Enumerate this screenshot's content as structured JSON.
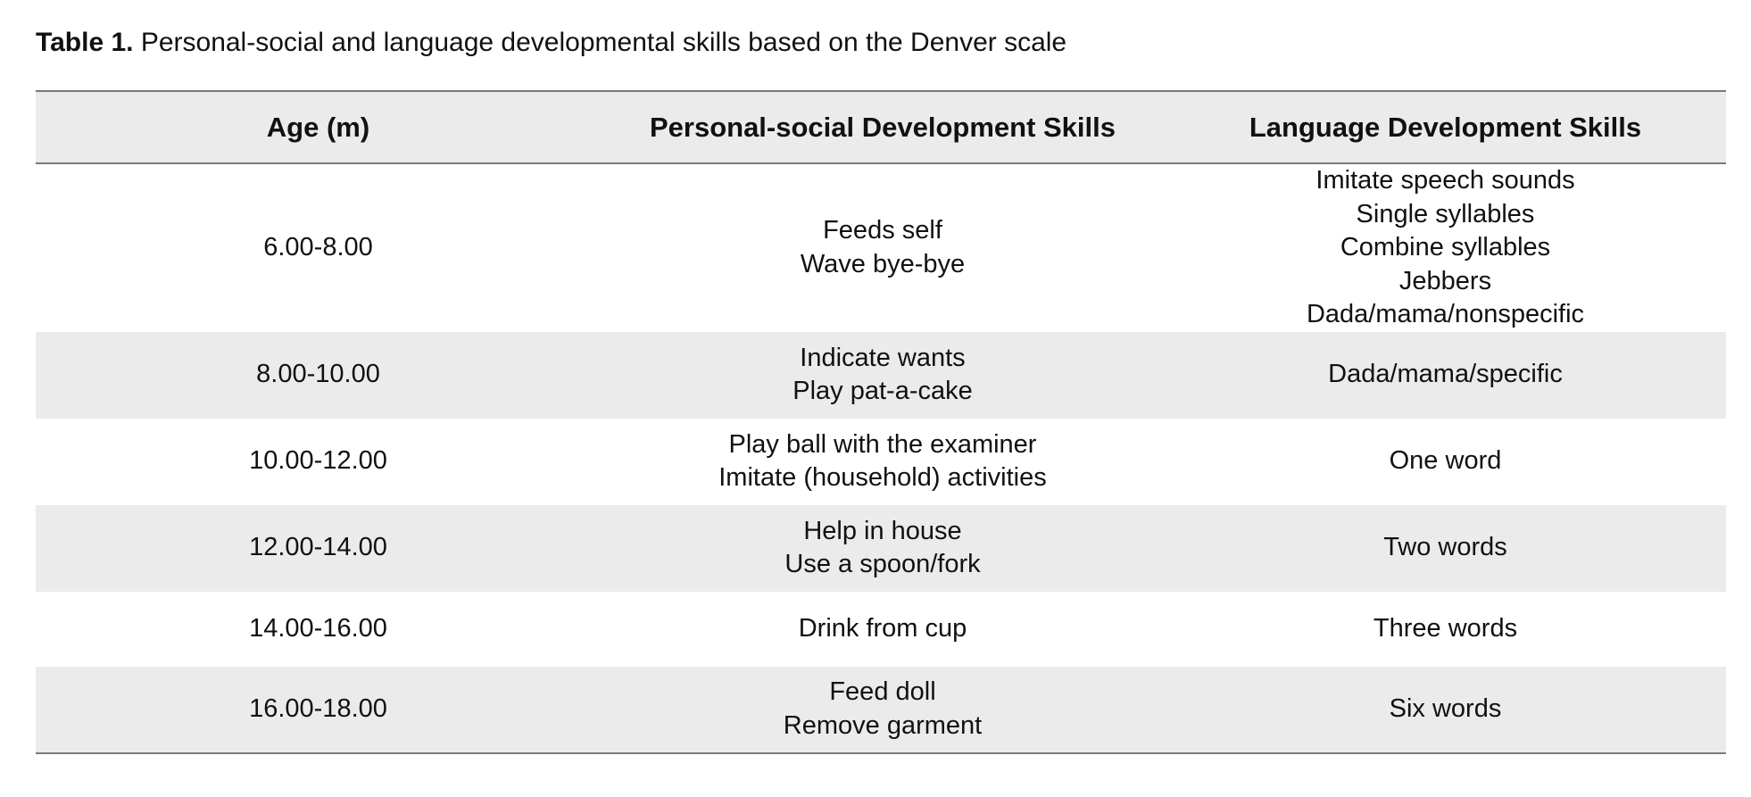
{
  "caption": {
    "label": "Table 1.",
    "text": " Personal-social and language developmental skills based on the Denver scale"
  },
  "table": {
    "headers": [
      "Age (m)",
      "Personal-social Development Skills",
      "Language Development Skills"
    ],
    "rows": [
      {
        "age": "6.00-8.00",
        "personal_social": [
          "Feeds self",
          "Wave bye-bye"
        ],
        "language": [
          "Imitate speech sounds",
          "Single syllables",
          "Combine syllables",
          "Jebbers",
          "Dada/mama/nonspecific"
        ]
      },
      {
        "age": "8.00-10.00",
        "personal_social": [
          "Indicate wants",
          "Play pat-a-cake"
        ],
        "language": [
          "Dada/mama/specific"
        ]
      },
      {
        "age": "10.00-12.00",
        "personal_social": [
          "Play ball with the examiner",
          "Imitate (household) activities"
        ],
        "language": [
          "One word"
        ]
      },
      {
        "age": "12.00-14.00",
        "personal_social": [
          "Help in house",
          "Use a spoon/fork"
        ],
        "language": [
          "Two words"
        ]
      },
      {
        "age": "14.00-16.00",
        "personal_social": [
          "Drink from cup"
        ],
        "language": [
          "Three words"
        ]
      },
      {
        "age": "16.00-18.00",
        "personal_social": [
          "Feed doll",
          "Remove garment"
        ],
        "language": [
          "Six words"
        ]
      }
    ]
  }
}
